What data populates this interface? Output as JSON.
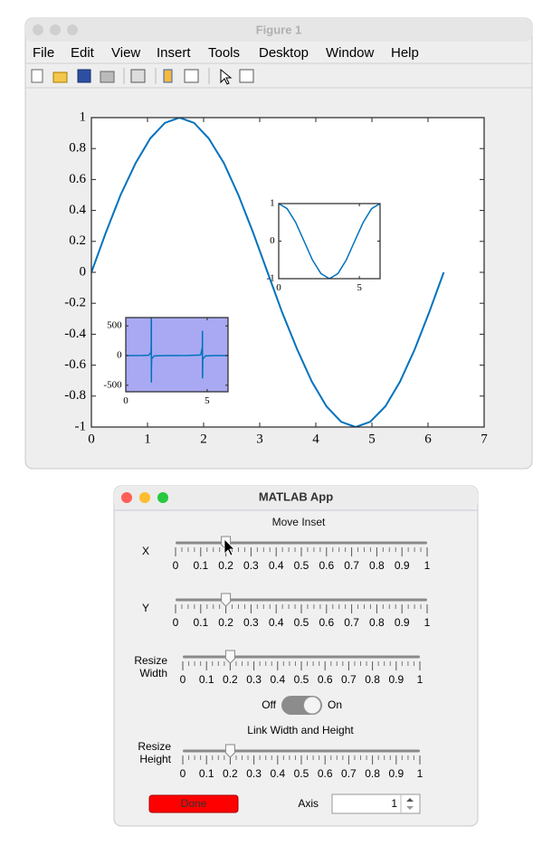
{
  "figure_window": {
    "title": "Figure 1",
    "menu": [
      "File",
      "Edit",
      "View",
      "Insert",
      "Tools",
      "Desktop",
      "Window",
      "Help"
    ]
  },
  "chart_data": [
    {
      "type": "line",
      "color": "#0072bd",
      "axes_color": "#ffffff",
      "x": [
        0,
        0.26,
        0.52,
        0.79,
        1.05,
        1.31,
        1.57,
        1.83,
        2.09,
        2.36,
        2.62,
        2.88,
        3.14,
        3.4,
        3.67,
        3.93,
        4.19,
        4.45,
        4.71,
        4.97,
        5.24,
        5.5,
        5.76,
        6.02,
        6.28
      ],
      "values": [
        0,
        0.259,
        0.5,
        0.707,
        0.866,
        0.966,
        1,
        0.966,
        0.866,
        0.707,
        0.5,
        0.259,
        0,
        -0.259,
        -0.5,
        -0.707,
        -0.866,
        -0.966,
        -1,
        -0.966,
        -0.866,
        -0.707,
        -0.5,
        -0.259,
        0
      ],
      "xlim": [
        0,
        7
      ],
      "ylim": [
        -1,
        1
      ],
      "xticks": [
        0,
        1,
        2,
        3,
        4,
        5,
        6,
        7
      ],
      "yticks": [
        -1,
        -0.8,
        -0.6,
        -0.4,
        -0.2,
        0,
        0.2,
        0.4,
        0.6,
        0.8,
        1
      ]
    },
    {
      "type": "line",
      "color": "#0072bd",
      "axes_color": "#ffffff",
      "x": [
        0,
        0.52,
        1.05,
        1.57,
        2.09,
        2.62,
        3.14,
        3.67,
        4.19,
        4.71,
        5.24,
        5.76,
        6.28
      ],
      "values": [
        1,
        0.866,
        0.5,
        0,
        -0.5,
        -0.866,
        -1,
        -0.866,
        -0.5,
        0,
        0.5,
        0.866,
        1
      ],
      "xlim": [
        0,
        6.2832
      ],
      "ylim": [
        -1,
        1
      ],
      "xticks": [
        0,
        5
      ],
      "yticks": [
        -1,
        0,
        1
      ]
    },
    {
      "type": "line",
      "color": "#0072bd",
      "axes_color": "#a9a9f3",
      "x": [
        0,
        0.5,
        1.0,
        1.4,
        1.55,
        1.565,
        1.57,
        1.573,
        1.575,
        1.59,
        1.75,
        2.5,
        3.14,
        3.8,
        4.6,
        4.705,
        4.71,
        4.715,
        4.73,
        4.9,
        5.5,
        6.28
      ],
      "values": [
        0,
        0.55,
        1.56,
        5.8,
        48.1,
        172.5,
        1255.8,
        -455,
        -237.9,
        -52.1,
        -5.52,
        -0.75,
        0,
        0.77,
        8.85,
        135,
        417,
        -385,
        -56.8,
        -5.27,
        -1.0,
        0
      ],
      "xlim": [
        0,
        6.2832
      ],
      "ylim": [
        -610,
        640
      ],
      "xticks": [
        0,
        5
      ],
      "yticks": [
        -500,
        0,
        500
      ]
    }
  ],
  "app": {
    "title": "MATLAB App",
    "heading": "Move Inset",
    "sliders": [
      {
        "label": [
          "X"
        ],
        "value": 0.2,
        "limits": [
          0,
          1
        ],
        "ticks": [
          0,
          0.1,
          0.2,
          0.3,
          0.4,
          0.5,
          0.6,
          0.7,
          0.8,
          0.9,
          1
        ]
      },
      {
        "label": [
          "Y"
        ],
        "value": 0.2,
        "limits": [
          0,
          1
        ],
        "ticks": [
          0,
          0.1,
          0.2,
          0.3,
          0.4,
          0.5,
          0.6,
          0.7,
          0.8,
          0.9,
          1
        ]
      },
      {
        "label": [
          "Resize",
          "Width"
        ],
        "value": 0.2,
        "limits": [
          0,
          1
        ],
        "ticks": [
          0,
          0.1,
          0.2,
          0.3,
          0.4,
          0.5,
          0.6,
          0.7,
          0.8,
          0.9,
          1
        ]
      },
      {
        "label": [
          "Resize",
          "Height"
        ],
        "value": 0.2,
        "limits": [
          0,
          1
        ],
        "ticks": [
          0,
          0.1,
          0.2,
          0.3,
          0.4,
          0.5,
          0.6,
          0.7,
          0.8,
          0.9,
          1
        ]
      }
    ],
    "switch": [
      "Off",
      "On"
    ],
    "link_label": "Link Width and Height",
    "done_button": "Done",
    "spinner": {
      "label": "Axis",
      "value": 1
    }
  }
}
